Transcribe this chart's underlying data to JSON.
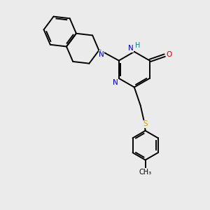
{
  "bg_color": "#ebebeb",
  "bond_color": "#000000",
  "N_color": "#0000cc",
  "O_color": "#cc0000",
  "S_color": "#ccaa00",
  "H_color": "#008888",
  "line_width": 1.4,
  "dbo": 0.06,
  "xlim": [
    0,
    10
  ],
  "ylim": [
    0,
    10
  ],
  "figsize": [
    3.0,
    3.0
  ],
  "dpi": 100,
  "font_size": 7.5
}
